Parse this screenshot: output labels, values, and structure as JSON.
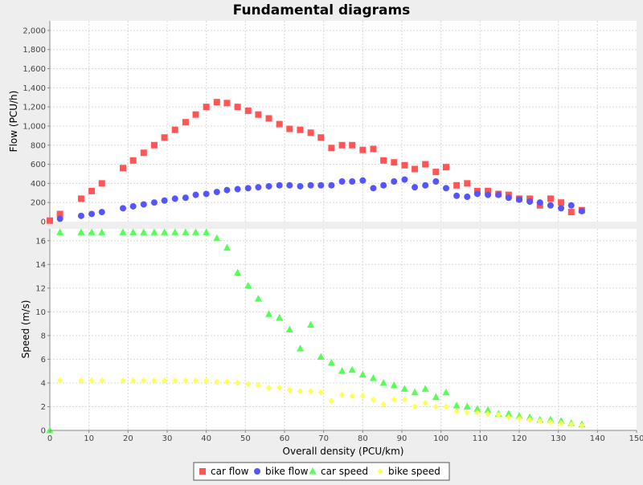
{
  "chart_data": {
    "type": "scatter",
    "title": "Fundamental diagrams",
    "xlabel": "Overall density (PCU/km)",
    "xlim": [
      0,
      150
    ],
    "x_ticks": [
      "0",
      "10",
      "20",
      "30",
      "40",
      "50",
      "60",
      "70",
      "80",
      "90",
      "100",
      "110",
      "120",
      "130",
      "140",
      "150"
    ],
    "grid": true,
    "legend_position": "bottom",
    "plots": [
      {
        "name": "flow",
        "ylabel": "Flow (PCU/h)",
        "ylim": [
          0,
          2100
        ],
        "y_ticks": [
          "0",
          "200",
          "400",
          "600",
          "800",
          "1,000",
          "1,200",
          "1,400",
          "1,600",
          "1,800",
          "2,000"
        ],
        "series": [
          {
            "name": "car flow",
            "marker": "square",
            "color": "#ff5555",
            "x": [
              0,
              2.6,
              8,
              10.7,
              13.3,
              18.7,
              21.3,
              24,
              26.7,
              29.3,
              32,
              34.7,
              37.3,
              40,
              42.7,
              45.3,
              48,
              50.7,
              53.3,
              56,
              58.7,
              61.3,
              64,
              66.7,
              69.3,
              72,
              74.7,
              77.3,
              80,
              82.7,
              85.3,
              88,
              90.7,
              93.3,
              96,
              98.7,
              101.3,
              104,
              106.7,
              109.3,
              112,
              114.7,
              117.3,
              120,
              122.7,
              125.3,
              128,
              130.7,
              133.3,
              136
            ],
            "y": [
              10,
              80,
              240,
              320,
              400,
              560,
              640,
              720,
              800,
              880,
              960,
              1040,
              1120,
              1200,
              1250,
              1240,
              1200,
              1160,
              1120,
              1080,
              1020,
              970,
              960,
              930,
              880,
              770,
              800,
              800,
              750,
              760,
              640,
              620,
              590,
              550,
              600,
              520,
              570,
              380,
              400,
              320,
              320,
              290,
              280,
              240,
              240,
              170,
              240,
              200,
              100,
              120
            ]
          },
          {
            "name": "bike flow",
            "marker": "circle",
            "color": "#5555ff",
            "x": [
              2.6,
              8,
              10.7,
              13.3,
              18.7,
              21.3,
              24,
              26.7,
              29.3,
              32,
              34.7,
              37.3,
              40,
              42.7,
              45.3,
              48,
              50.7,
              53.3,
              56,
              58.7,
              61.3,
              64,
              66.7,
              69.3,
              72,
              74.7,
              77.3,
              80,
              82.7,
              85.3,
              88,
              90.7,
              93.3,
              96,
              98.7,
              101.3,
              104,
              106.7,
              109.3,
              112,
              114.7,
              117.3,
              120,
              122.7,
              125.3,
              128,
              130.7,
              133.3,
              136
            ],
            "y": [
              30,
              60,
              80,
              100,
              140,
              160,
              180,
              200,
              220,
              240,
              250,
              280,
              290,
              310,
              330,
              340,
              350,
              360,
              370,
              380,
              380,
              370,
              380,
              380,
              380,
              420,
              420,
              430,
              350,
              380,
              420,
              440,
              360,
              380,
              420,
              350,
              270,
              260,
              290,
              280,
              280,
              250,
              230,
              210,
              200,
              170,
              140,
              170,
              110
            ]
          }
        ]
      },
      {
        "name": "speed",
        "ylabel": "Speed (m/s)",
        "ylim": [
          0,
          17
        ],
        "y_ticks": [
          "0",
          "2",
          "4",
          "6",
          "8",
          "10",
          "12",
          "14",
          "16"
        ],
        "series": [
          {
            "name": "car speed",
            "marker": "triangle",
            "color": "#55ff55",
            "x": [
              0,
              2.6,
              8,
              10.7,
              13.3,
              18.7,
              21.3,
              24,
              26.7,
              29.3,
              32,
              34.7,
              37.3,
              40,
              42.7,
              45.3,
              48,
              50.7,
              53.3,
              56,
              58.7,
              61.3,
              64,
              66.7,
              69.3,
              72,
              74.7,
              77.3,
              80,
              82.7,
              85.3,
              88,
              90.7,
              93.3,
              96,
              98.7,
              101.3,
              104,
              106.7,
              109.3,
              112,
              114.7,
              117.3,
              120,
              122.7,
              125.3,
              128,
              130.7,
              133.3,
              136
            ],
            "y": [
              0,
              16.7,
              16.7,
              16.7,
              16.7,
              16.7,
              16.7,
              16.7,
              16.7,
              16.7,
              16.7,
              16.7,
              16.7,
              16.7,
              16.2,
              15.4,
              13.3,
              12.2,
              11.1,
              9.8,
              9.5,
              8.5,
              6.9,
              8.9,
              6.2,
              5.7,
              5,
              5.1,
              4.7,
              4.4,
              4,
              3.8,
              3.5,
              3.2,
              3.5,
              2.8,
              3.2,
              2.1,
              2,
              1.8,
              1.7,
              1.4,
              1.4,
              1.2,
              1.1,
              0.9,
              0.9,
              0.8,
              0.6,
              0.5
            ]
          },
          {
            "name": "bike speed",
            "marker": "diamond",
            "color": "#ffff55",
            "x": [
              2.6,
              8,
              10.7,
              13.3,
              18.7,
              21.3,
              24,
              26.7,
              29.3,
              32,
              34.7,
              37.3,
              40,
              42.7,
              45.3,
              48,
              50.7,
              53.3,
              56,
              58.7,
              61.3,
              64,
              66.7,
              69.3,
              72,
              74.7,
              77.3,
              80,
              82.7,
              85.3,
              88,
              90.7,
              93.3,
              96,
              98.7,
              101.3,
              104,
              106.7,
              109.3,
              112,
              114.7,
              117.3,
              120,
              122.7,
              125.3,
              128,
              130.7,
              133.3,
              136
            ],
            "y": [
              4.2,
              4.2,
              4.2,
              4.2,
              4.2,
              4.2,
              4.2,
              4.2,
              4.2,
              4.2,
              4.2,
              4.2,
              4.2,
              4.1,
              4.1,
              4,
              3.9,
              3.8,
              3.6,
              3.6,
              3.4,
              3.3,
              3.3,
              3.2,
              2.5,
              3,
              2.9,
              2.9,
              2.6,
              2.2,
              2.6,
              2.6,
              2,
              2.3,
              2,
              2,
              1.6,
              1.5,
              1.5,
              1.4,
              1.3,
              1.1,
              1,
              0.9,
              0.8,
              0.7,
              0.6,
              0.5,
              0.4
            ]
          }
        ]
      }
    ]
  }
}
